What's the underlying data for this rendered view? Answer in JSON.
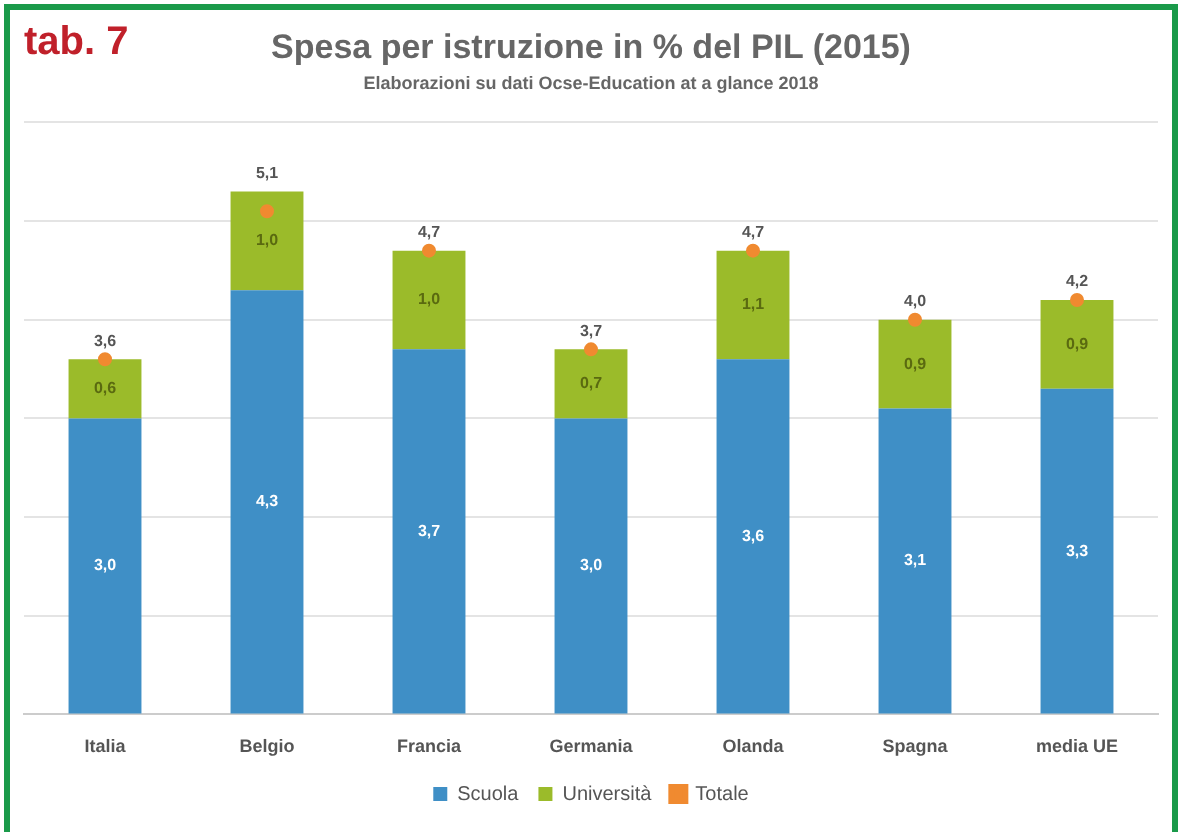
{
  "chart_data": {
    "type": "bar",
    "title": "Spesa per istruzione in % del PIL (2015)",
    "subtitle": "Elaborazioni su dati Ocse-Education at a glance 2018",
    "annotations": [
      "tab. 7"
    ],
    "categories": [
      "Italia",
      "Belgio",
      "Francia",
      "Germania",
      "Olanda",
      "Spagna",
      "media UE"
    ],
    "stacked": true,
    "series": [
      {
        "name": "Scuola",
        "color": "#3f8fc6",
        "values": [
          3.0,
          4.3,
          3.7,
          3.0,
          3.6,
          3.1,
          3.3
        ],
        "value_labels": [
          "3,0",
          "4,3",
          "3,7",
          "3,0",
          "3,6",
          "3,1",
          "3,3"
        ]
      },
      {
        "name": "Università",
        "color": "#9bbb2a",
        "values": [
          0.6,
          1.0,
          1.0,
          0.7,
          1.1,
          0.9,
          0.9
        ],
        "value_labels": [
          "0,6",
          "1,0",
          "1,0",
          "0,7",
          "1,1",
          "0,9",
          "0,9"
        ]
      },
      {
        "name": "Totale",
        "type": "scatter",
        "marker": "circle",
        "color": "#f08a30",
        "x": [
          "Italia",
          "Belgio",
          "Francia",
          "Germania",
          "Olanda",
          "Spagna",
          "media UE"
        ],
        "values": [
          3.6,
          5.1,
          4.7,
          3.7,
          4.7,
          4.0,
          4.2
        ],
        "value_labels": [
          "3,6",
          "5,1",
          "4,7",
          "3,7",
          "4,7",
          "4,0",
          "4,2"
        ]
      }
    ],
    "ylim": [
      0,
      6
    ],
    "yticks": [
      {
        "value": 0,
        "label": null
      },
      {
        "value": 1,
        "label": null
      },
      {
        "value": 2,
        "label": null
      },
      {
        "value": 3,
        "label": null
      },
      {
        "value": 4,
        "label": null
      },
      {
        "value": 5,
        "label": null
      },
      {
        "value": 6,
        "label": null
      }
    ],
    "tick_labels": "x",
    "grid": "y",
    "legend": "bottom"
  }
}
